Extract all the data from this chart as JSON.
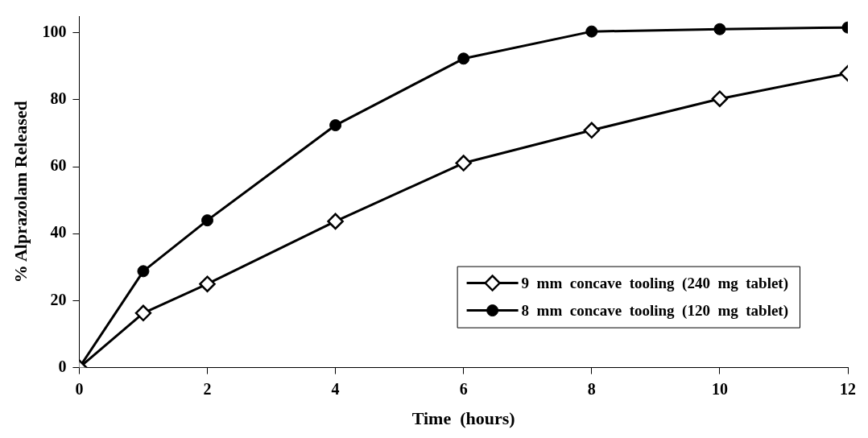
{
  "chart_data": {
    "type": "line",
    "xlabel": "Time  (hours)",
    "ylabel": "% Alprazolam Released",
    "x": [
      0,
      1,
      2,
      4,
      6,
      8,
      10,
      12
    ],
    "series": [
      {
        "name": "9  mm  concave  tooling  (240  mg  tablet)",
        "color": "#000000",
        "marker": "diamond",
        "values": [
          0,
          16.3,
          25.0,
          43.7,
          61.1,
          70.9,
          80.3,
          87.9
        ]
      },
      {
        "name": "8  mm  concave  tooling  (120  mg  tablet)",
        "color": "#000000",
        "marker": "circle",
        "values": [
          0,
          28.8,
          44.0,
          72.4,
          92.3,
          100.4,
          101.1,
          101.6
        ]
      }
    ],
    "xlim": [
      0,
      12
    ],
    "xticks": [
      0,
      2,
      4,
      6,
      8,
      10,
      12
    ],
    "ylim": [
      0,
      105
    ],
    "yticks": [
      0,
      20,
      40,
      60,
      80,
      100
    ],
    "grid": false,
    "legend": "bottom right",
    "line_style": "solid"
  }
}
